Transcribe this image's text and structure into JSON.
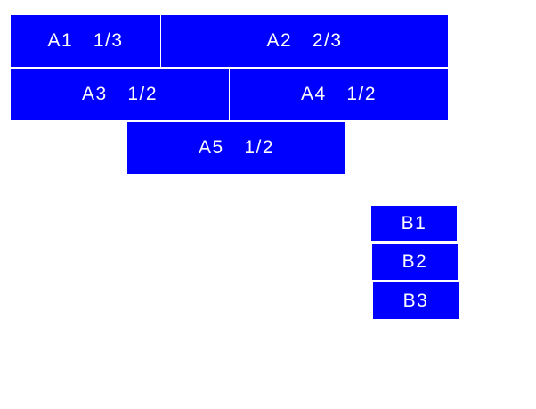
{
  "colors": {
    "box": "#0000ff",
    "text": "#ffffff",
    "background": "#ffffff"
  },
  "group_a": [
    {
      "label": "A1  1/3"
    },
    {
      "label": "A2  2/3"
    },
    {
      "label": "A3  1/2"
    },
    {
      "label": "A4  1/2"
    },
    {
      "label": "A5  1/2"
    }
  ],
  "group_b": [
    {
      "label": "B1"
    },
    {
      "label": "B2"
    },
    {
      "label": "B3"
    }
  ]
}
